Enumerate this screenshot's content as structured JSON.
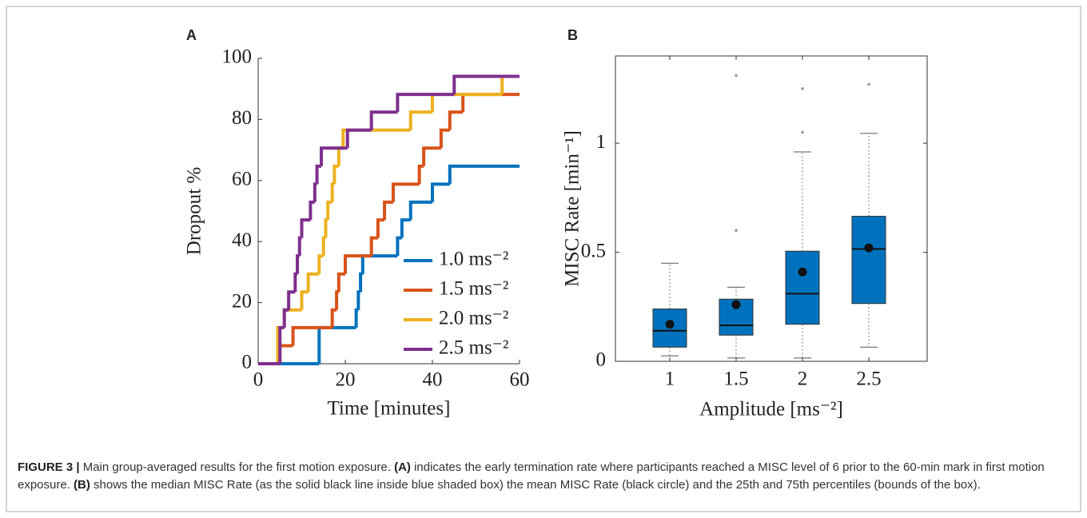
{
  "chart_data": [
    {
      "type": "step",
      "panel_label": "A",
      "xlabel": "Time [minutes]",
      "ylabel": "Dropout %",
      "xlim": [
        0,
        60
      ],
      "ylim": [
        0,
        100
      ],
      "xticks": [
        0,
        20,
        40,
        60
      ],
      "yticks": [
        0,
        20,
        40,
        60,
        80,
        100
      ],
      "legend": "lower right",
      "series": [
        {
          "name": "1.0 ms⁻²",
          "color": "#0072bd",
          "x": [
            0,
            14,
            22.5,
            23,
            23.5,
            24,
            32,
            33,
            35,
            40,
            44,
            60
          ],
          "y": [
            0,
            11.8,
            17.6,
            23.5,
            29.4,
            35.3,
            41.2,
            47.1,
            52.9,
            58.8,
            64.7,
            64.7
          ]
        },
        {
          "name": "1.5 ms⁻²",
          "color": "#d95319",
          "x": [
            0,
            5,
            8,
            17,
            18,
            18.5,
            20,
            26,
            27.5,
            29,
            31,
            37,
            38,
            42,
            44,
            47,
            60
          ],
          "y": [
            0,
            5.9,
            11.8,
            17.6,
            23.5,
            29.4,
            35.3,
            41.2,
            47.1,
            52.9,
            58.8,
            64.7,
            70.6,
            76.5,
            82.4,
            88.2,
            88.2
          ]
        },
        {
          "name": "2.0 ms⁻²",
          "color": "#edb120",
          "x": [
            0,
            4.5,
            6,
            10,
            11.5,
            14,
            15,
            15.5,
            16,
            17,
            17.5,
            18.5,
            19.5,
            35,
            40,
            56,
            60
          ],
          "y": [
            0,
            11.8,
            17.6,
            23.5,
            29.4,
            35.3,
            41.2,
            47.1,
            52.9,
            58.8,
            64.7,
            70.6,
            76.5,
            82.4,
            88.2,
            94.1,
            94.1
          ]
        },
        {
          "name": "2.5 ms⁻²",
          "color": "#7e2f8e",
          "x": [
            0,
            5,
            6,
            7,
            8.5,
            9,
            9.5,
            10,
            12,
            13,
            13.5,
            14.5,
            20.5,
            26,
            32,
            45,
            60
          ],
          "y": [
            0,
            11.8,
            17.6,
            23.5,
            29.4,
            35.3,
            41.2,
            47.1,
            52.9,
            58.8,
            64.7,
            70.6,
            76.5,
            82.4,
            88.2,
            94.1,
            94.1
          ]
        }
      ]
    },
    {
      "type": "box",
      "panel_label": "B",
      "xlabel": "Amplitude [ms⁻²]",
      "ylabel": "MISC Rate [min⁻¹]",
      "categories": [
        "1",
        "1.5",
        "2",
        "2.5"
      ],
      "color": "#0072bd",
      "ylim": [
        0,
        1.4
      ],
      "yticks": [
        0,
        0.5,
        1
      ],
      "whisker_low": [
        0.025,
        0.015,
        0.015,
        0.065
      ],
      "q1": [
        0.065,
        0.12,
        0.17,
        0.265
      ],
      "median": [
        0.14,
        0.165,
        0.31,
        0.515
      ],
      "q3": [
        0.24,
        0.285,
        0.505,
        0.665
      ],
      "whisker_high": [
        0.45,
        0.34,
        0.96,
        1.045
      ],
      "mean": [
        0.17,
        0.26,
        0.41,
        0.52
      ],
      "outliers": [
        [],
        [
          0.6,
          1.31
        ],
        [
          1.05,
          1.25
        ],
        [
          1.27
        ]
      ]
    }
  ],
  "caption": [
    {
      "text": "FIGURE 3 |",
      "bold": true
    },
    {
      "text": " Main group-averaged results for the first motion exposure. "
    },
    {
      "text": "(A)",
      "bold": true
    },
    {
      "text": " indicates the early termination rate where participants reached a MISC level of 6 prior to the 60-min mark in first motion exposure. "
    },
    {
      "text": "(B)",
      "bold": true
    },
    {
      "text": " shows the median MISC Rate (as the solid black line inside blue shaded box) the mean MISC Rate (black circle) and the 25th and 75th percentiles (bounds of the box)."
    }
  ]
}
